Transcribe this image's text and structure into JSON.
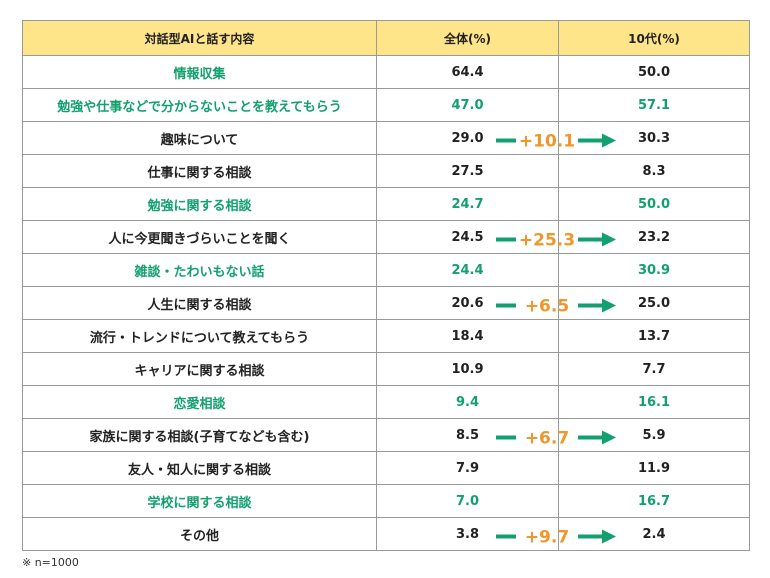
{
  "chart_data": {
    "type": "table",
    "columns": [
      "対話型AIと話す内容",
      "全体(%)",
      "10代(%)"
    ],
    "rows": [
      {
        "label": "情報収集",
        "all": "64.4",
        "teen": "50.0",
        "highlight": true,
        "diff": ""
      },
      {
        "label": "勉強や仕事などで分からないことを教えてもらう",
        "all": "47.0",
        "teen": "57.1",
        "highlight": true,
        "diff": "+10.1"
      },
      {
        "label": "趣味について",
        "all": "29.0",
        "teen": "30.3",
        "highlight": false,
        "diff": ""
      },
      {
        "label": "仕事に関する相談",
        "all": "27.5",
        "teen": "8.3",
        "highlight": false,
        "diff": ""
      },
      {
        "label": "勉強に関する相談",
        "all": "24.7",
        "teen": "50.0",
        "highlight": true,
        "diff": "+25.3"
      },
      {
        "label": "人に今更聞きづらいことを聞く",
        "all": "24.5",
        "teen": "23.2",
        "highlight": false,
        "diff": ""
      },
      {
        "label": "雑談・たわいもない話",
        "all": "24.4",
        "teen": "30.9",
        "highlight": true,
        "diff": "+6.5"
      },
      {
        "label": "人生に関する相談",
        "all": "20.6",
        "teen": "25.0",
        "highlight": false,
        "diff": ""
      },
      {
        "label": "流行・トレンドについて教えてもらう",
        "all": "18.4",
        "teen": "13.7",
        "highlight": false,
        "diff": ""
      },
      {
        "label": "キャリアに関する相談",
        "all": "10.9",
        "teen": "7.7",
        "highlight": false,
        "diff": ""
      },
      {
        "label": "恋愛相談",
        "all": "9.4",
        "teen": "16.1",
        "highlight": true,
        "diff": "+6.7"
      },
      {
        "label": "家族に関する相談(子育てなども含む)",
        "all": "8.5",
        "teen": "5.9",
        "highlight": false,
        "diff": ""
      },
      {
        "label": "友人・知人に関する相談",
        "all": "7.9",
        "teen": "11.9",
        "highlight": false,
        "diff": ""
      },
      {
        "label": "学校に関する相談",
        "all": "7.0",
        "teen": "16.7",
        "highlight": true,
        "diff": "+9.7"
      },
      {
        "label": "その他",
        "all": "3.8",
        "teen": "2.4",
        "highlight": false,
        "diff": ""
      }
    ],
    "note": "※ n=1000"
  },
  "colors": {
    "highlight_text": "#12a06e",
    "arrow": "#12a06e",
    "diff_text": "#f0962a",
    "header_bg": "#ffe58a"
  }
}
